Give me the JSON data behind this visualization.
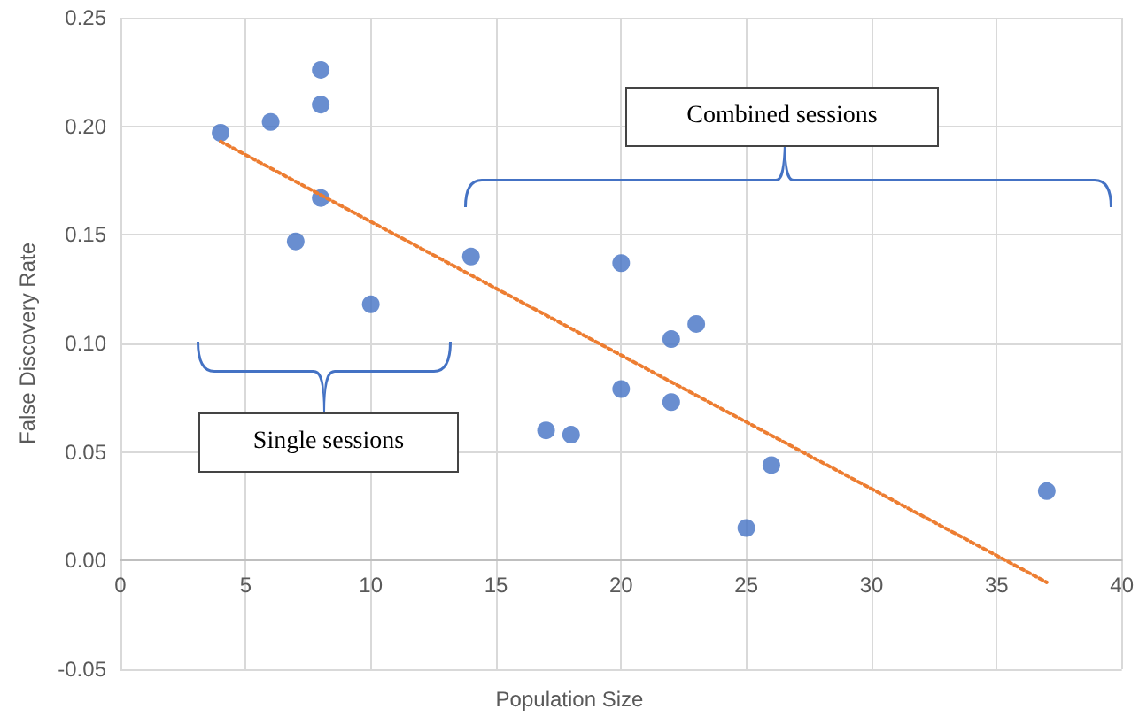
{
  "chart_data": {
    "type": "scatter",
    "xlabel": "Population Size",
    "ylabel": "False Discovery Rate",
    "xlim": [
      0,
      40
    ],
    "xticks": [
      0,
      5,
      10,
      15,
      20,
      25,
      30,
      35,
      40
    ],
    "ylim": [
      -0.05,
      0.25
    ],
    "yticks": [
      {
        "value": -0.05,
        "label": "-0.05"
      },
      {
        "value": 0,
        "label": "0.00"
      },
      {
        "value": 0.05,
        "label": "0.05"
      },
      {
        "value": 0.1,
        "label": "0.10"
      },
      {
        "value": 0.15,
        "label": "0.15"
      },
      {
        "value": 0.2,
        "label": "0.20"
      },
      {
        "value": 0.25,
        "label": "0.25"
      }
    ],
    "grid": true,
    "annotations": [
      "Combined sessions",
      "Single sessions"
    ],
    "series": [
      {
        "type": "scatter",
        "color": "#4472c4",
        "marker": "circle",
        "x": [
          4,
          6,
          8,
          8,
          8,
          7,
          10,
          14,
          20,
          22,
          23,
          20,
          22,
          17,
          18,
          26,
          25,
          37
        ],
        "values": [
          0.197,
          0.202,
          0.226,
          0.21,
          0.167,
          0.147,
          0.118,
          0.14,
          0.137,
          0.102,
          0.109,
          0.079,
          0.073,
          0.06,
          0.058,
          0.044,
          0.015,
          0.032
        ]
      },
      {
        "type": "line",
        "color": "#ed7d31",
        "marker": "none",
        "line_style": "dotted",
        "x": [
          4,
          37
        ],
        "values": [
          0.193,
          -0.01
        ]
      }
    ]
  }
}
